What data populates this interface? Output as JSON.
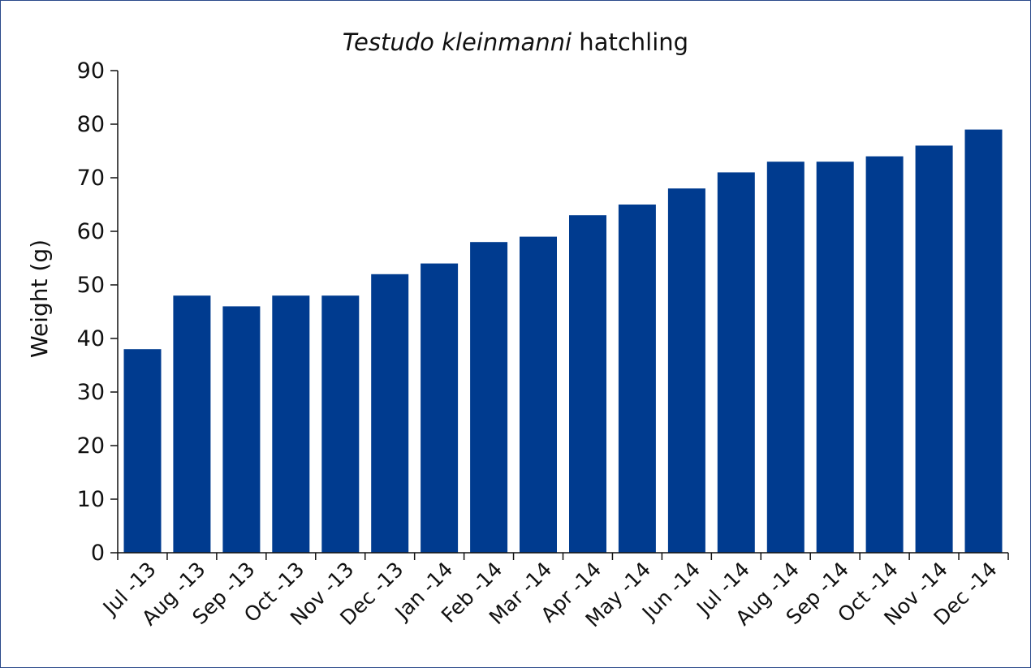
{
  "chart_data": {
    "type": "bar",
    "title_italic": "Testudo kleinmanni",
    "title_rest": " hatchling",
    "xlabel": "",
    "ylabel": "Weight (g)",
    "ylim": [
      0,
      90
    ],
    "yticks": [
      0,
      10,
      20,
      30,
      40,
      50,
      60,
      70,
      80,
      90
    ],
    "categories": [
      "Jul -13",
      "Aug -13",
      "Sep -13",
      "Oct -13",
      "Nov -13",
      "Dec -13",
      "Jan -14",
      "Feb -14",
      "Mar -14",
      "Apr -14",
      "May -14",
      "Jun -14",
      "Jul -14",
      "Aug -14",
      "Sep -14",
      "Oct -14",
      "Nov -14",
      "Dec -14"
    ],
    "values": [
      38,
      48,
      46,
      48,
      48,
      52,
      54,
      58,
      59,
      63,
      65,
      68,
      71,
      73,
      73,
      74,
      76,
      79
    ],
    "bar_color": "#003b8f",
    "grid": false,
    "legend": "none"
  }
}
